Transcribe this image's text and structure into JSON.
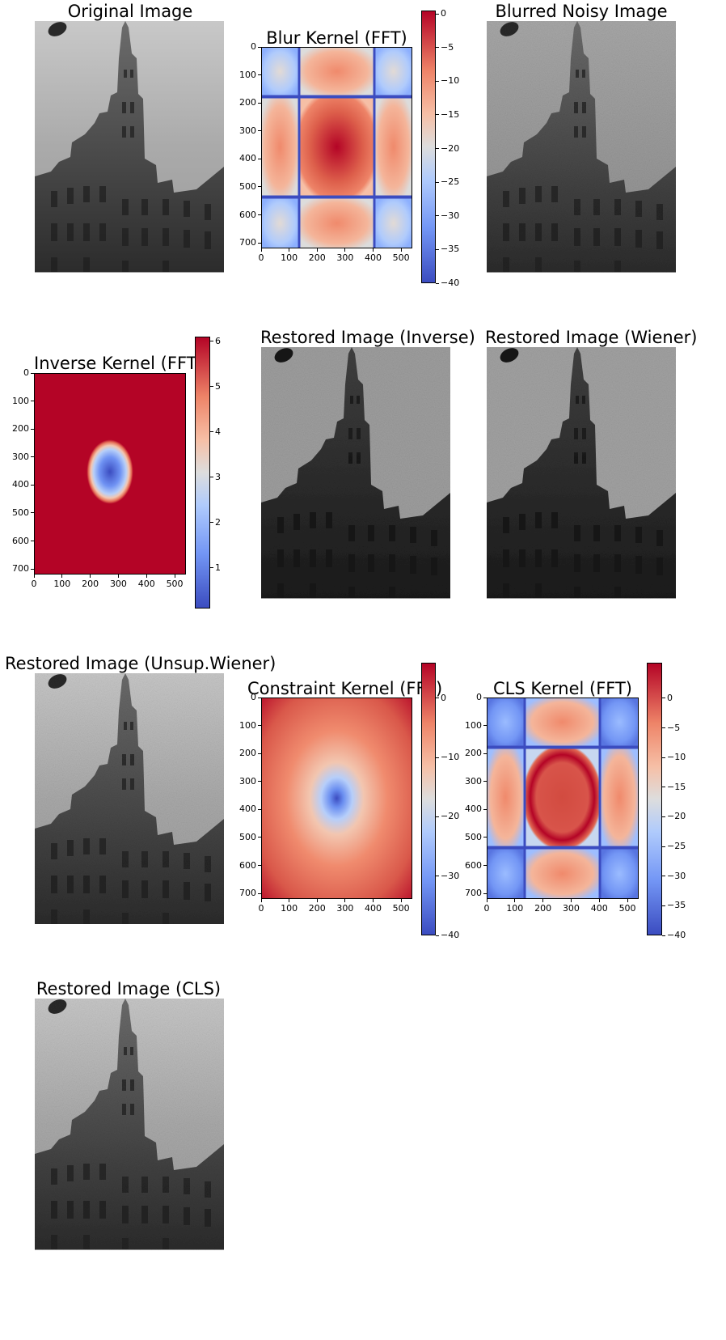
{
  "panels": {
    "original": {
      "title": "Original Image"
    },
    "blur_kernel": {
      "title": "Blur Kernel (FFT)"
    },
    "blurred": {
      "title": "Blurred Noisy Image"
    },
    "inverse_kernel": {
      "title": "Inverse Kernel (FFT)"
    },
    "restored_inverse": {
      "title": "Restored Image (Inverse)"
    },
    "restored_wiener": {
      "title": "Restored Image (Wiener)"
    },
    "restored_unsup": {
      "title": "Restored Image (Unsup.Wiener)"
    },
    "constraint_kernel": {
      "title": "Constraint Kernel (FFT)"
    },
    "cls_kernel": {
      "title": "CLS Kernel (FFT)"
    },
    "restored_cls": {
      "title": "Restored Image (CLS)"
    }
  },
  "chart_data": [
    {
      "type": "heatmap",
      "title": "Blur Kernel (FFT)",
      "xticks": [
        0,
        100,
        200,
        300,
        400,
        500
      ],
      "yticks": [
        0,
        100,
        200,
        300,
        400,
        500,
        600,
        700
      ],
      "xlim": [
        0,
        540
      ],
      "ylim": [
        720,
        0
      ],
      "colorbar": {
        "ticks": [
          0,
          -5,
          -10,
          -15,
          -20,
          -25,
          -30,
          -35,
          -40
        ],
        "range": [
          -40,
          0.5
        ]
      },
      "colormap": "coolwarm"
    },
    {
      "type": "heatmap",
      "title": "Inverse Kernel (FFT)",
      "xticks": [
        0,
        100,
        200,
        300,
        400,
        500
      ],
      "yticks": [
        0,
        100,
        200,
        300,
        400,
        500,
        600,
        700
      ],
      "xlim": [
        0,
        540
      ],
      "ylim": [
        720,
        0
      ],
      "colorbar": {
        "ticks": [
          6,
          5,
          4,
          3,
          2,
          1
        ],
        "range": [
          0.1,
          6.1
        ]
      },
      "colormap": "coolwarm"
    },
    {
      "type": "heatmap",
      "title": "Constraint Kernel (FFT)",
      "xticks": [
        0,
        100,
        200,
        300,
        400,
        500
      ],
      "yticks": [
        0,
        100,
        200,
        300,
        400,
        500,
        600,
        700
      ],
      "xlim": [
        0,
        540
      ],
      "ylim": [
        720,
        0
      ],
      "colorbar": {
        "ticks": [
          0,
          -10,
          -20,
          -30,
          -40
        ],
        "range": [
          -40,
          6
        ]
      },
      "colormap": "coolwarm"
    },
    {
      "type": "heatmap",
      "title": "CLS Kernel (FFT)",
      "xticks": [
        0,
        100,
        200,
        300,
        400,
        500
      ],
      "yticks": [
        0,
        100,
        200,
        300,
        400,
        500,
        600,
        700
      ],
      "xlim": [
        0,
        540
      ],
      "ylim": [
        720,
        0
      ],
      "colorbar": {
        "ticks": [
          0,
          -5,
          -10,
          -15,
          -20,
          -25,
          -30,
          -35,
          -40
        ],
        "range": [
          -40,
          6
        ]
      },
      "colormap": "coolwarm"
    }
  ]
}
